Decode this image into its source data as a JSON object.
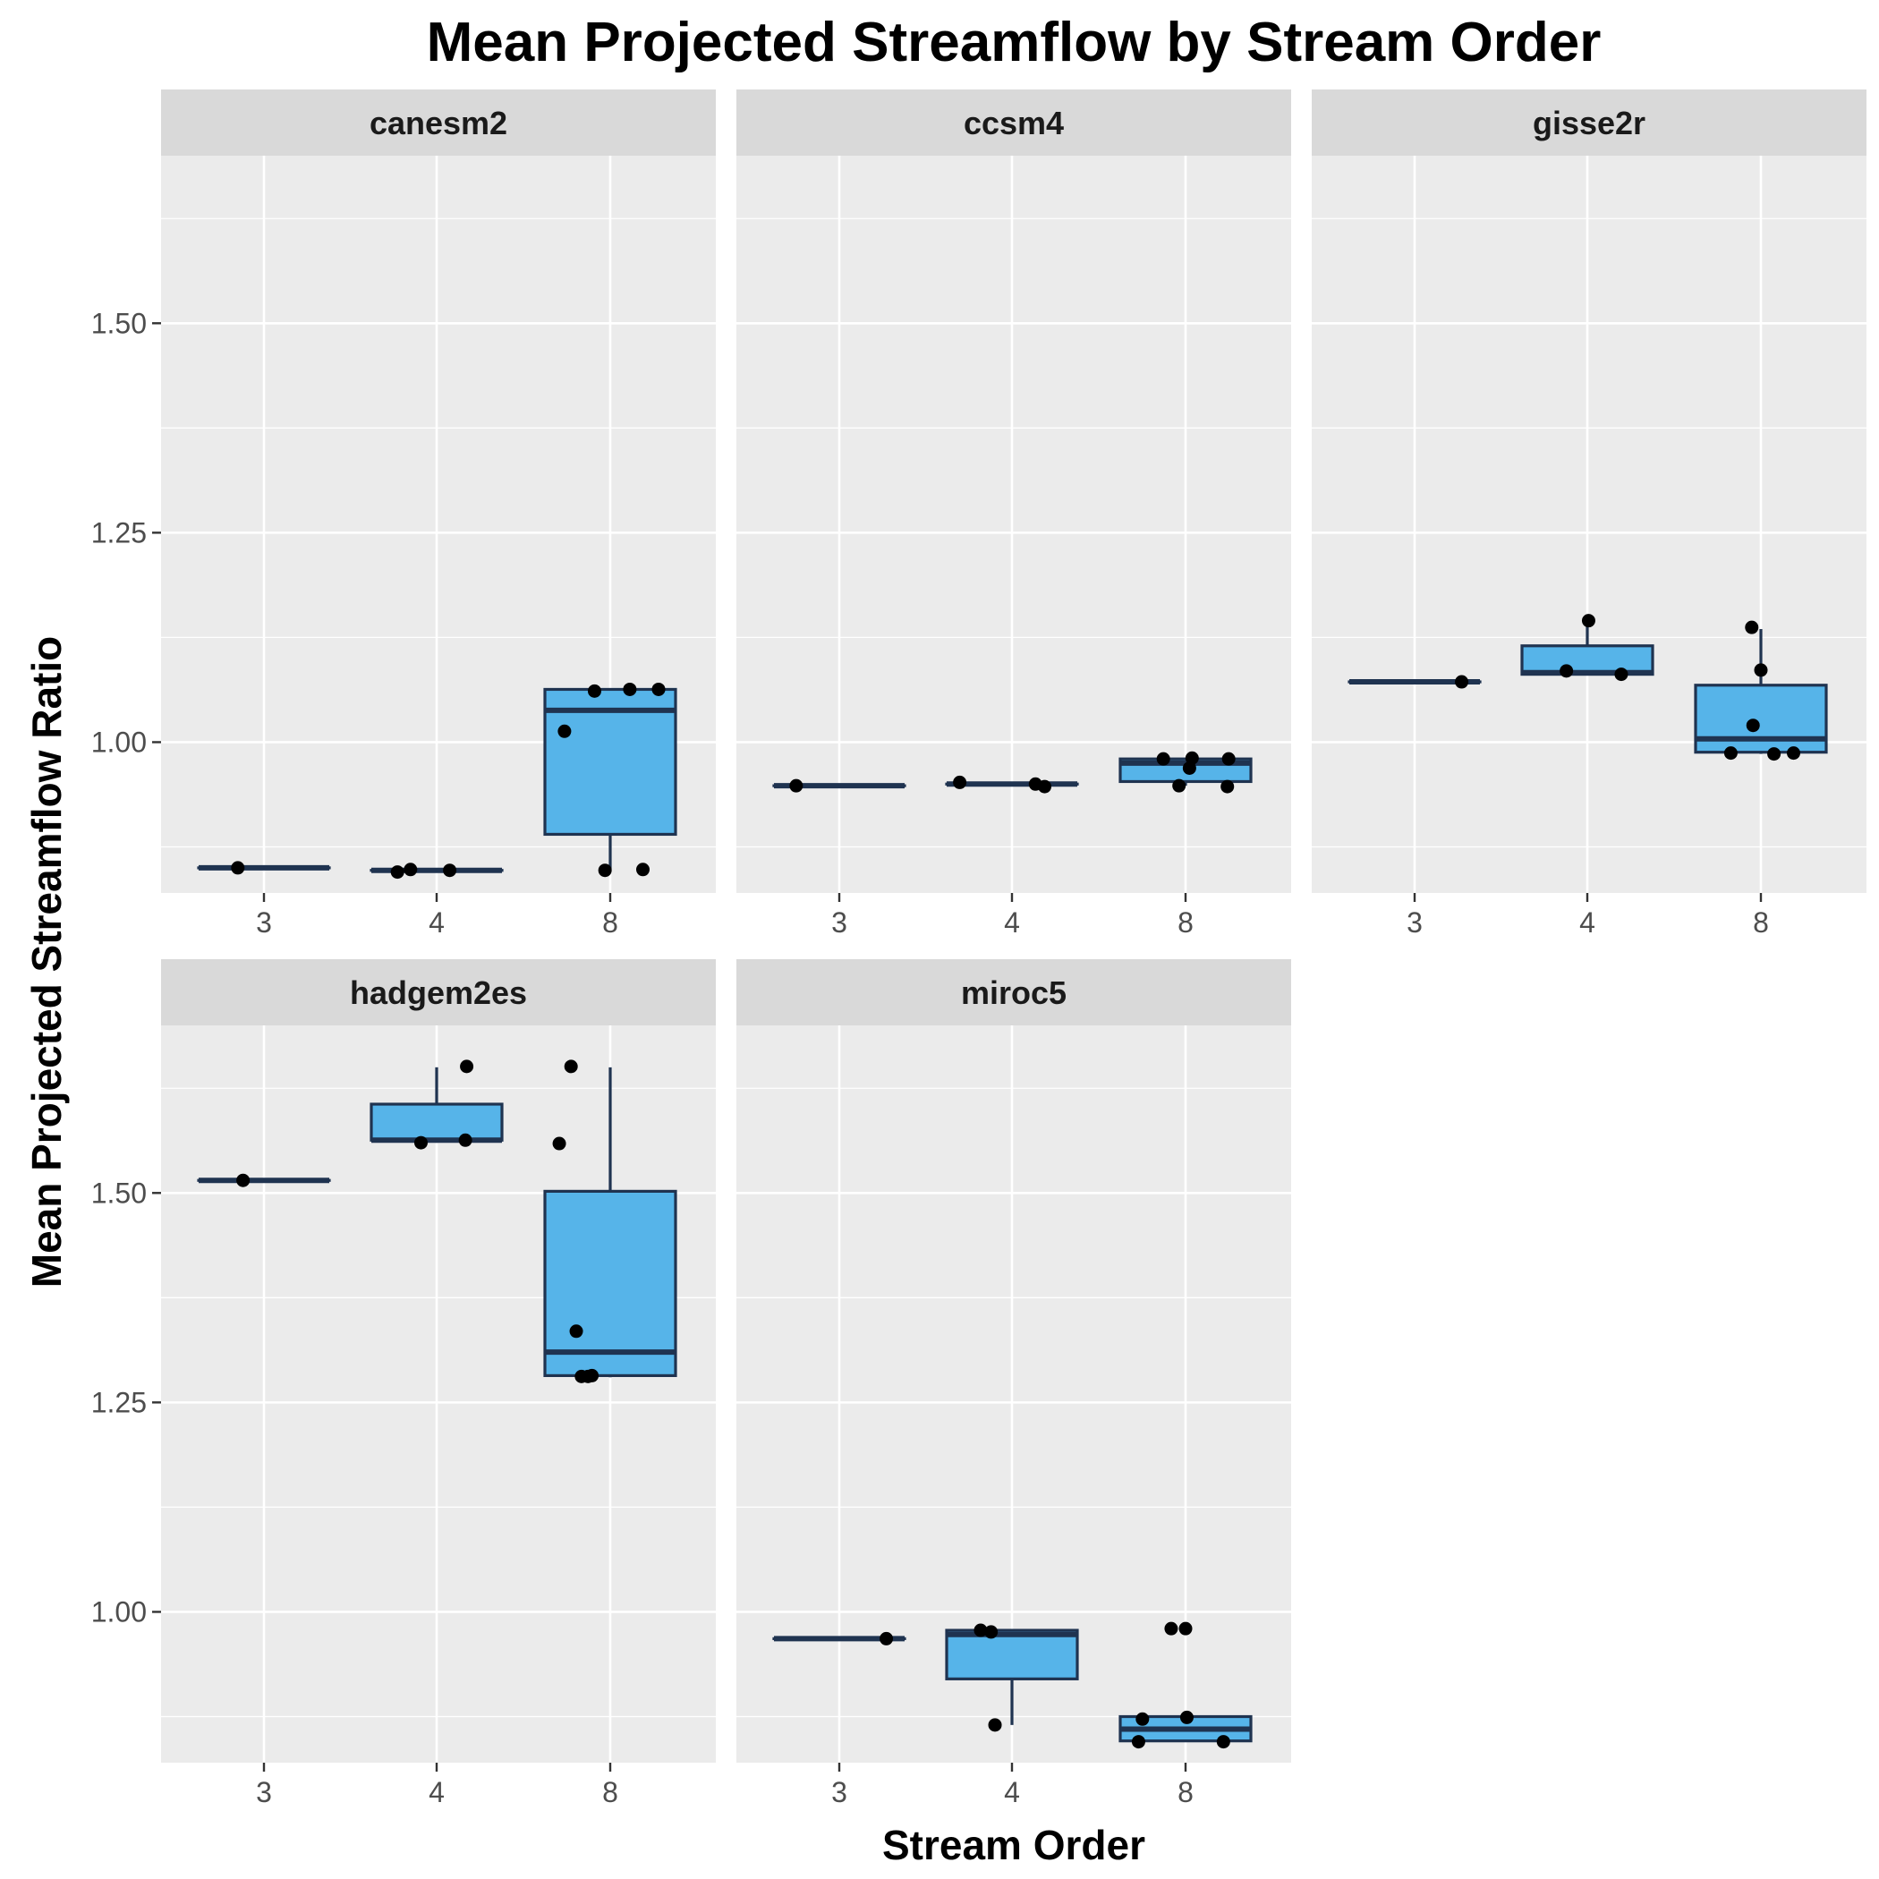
{
  "chart_data": {
    "type": "box",
    "title": "Mean Projected Streamflow by Stream Order",
    "xlabel": "Stream Order",
    "ylabel": "Mean Projected Streamflow Ratio",
    "categories": [
      "3",
      "4",
      "8"
    ],
    "y_ticks": [
      "1.00",
      "1.25",
      "1.50"
    ],
    "y_tick_values": [
      1.0,
      1.25,
      1.5
    ],
    "ylim": [
      0.82,
      1.7
    ],
    "box_fill": "#56b4e9",
    "box_stroke": "#1f3350",
    "panel_background": "#ebebeb",
    "strip_background": "#d9d9d9",
    "grid": true,
    "panels": [
      {
        "name": "canesm2",
        "boxes": [
          {
            "category": "3",
            "min": 0.85,
            "q1": 0.85,
            "median": 0.85,
            "q3": 0.85,
            "max": 0.85
          },
          {
            "category": "4",
            "min": 0.847,
            "q1": 0.847,
            "median": 0.847,
            "q3": 0.847,
            "max": 0.847
          },
          {
            "category": "8",
            "min": 0.848,
            "q1": 0.89,
            "median": 1.038,
            "q3": 1.063,
            "max": 1.063
          }
        ],
        "points": [
          {
            "category": "3",
            "jitter": -0.2,
            "y": 0.85
          },
          {
            "category": "4",
            "jitter": -0.3,
            "y": 0.845
          },
          {
            "category": "4",
            "jitter": -0.2,
            "y": 0.848
          },
          {
            "category": "4",
            "jitter": 0.1,
            "y": 0.847
          },
          {
            "category": "8",
            "jitter": -0.35,
            "y": 1.013
          },
          {
            "category": "8",
            "jitter": -0.12,
            "y": 1.061
          },
          {
            "category": "8",
            "jitter": -0.04,
            "y": 0.847
          },
          {
            "category": "8",
            "jitter": 0.15,
            "y": 1.063
          },
          {
            "category": "8",
            "jitter": 0.25,
            "y": 0.848
          },
          {
            "category": "8",
            "jitter": 0.37,
            "y": 1.063
          }
        ]
      },
      {
        "name": "ccsm4",
        "boxes": [
          {
            "category": "3",
            "min": 0.948,
            "q1": 0.948,
            "median": 0.948,
            "q3": 0.948,
            "max": 0.948
          },
          {
            "category": "4",
            "min": 0.95,
            "q1": 0.95,
            "median": 0.95,
            "q3": 0.95,
            "max": 0.95
          },
          {
            "category": "8",
            "min": 0.948,
            "q1": 0.953,
            "median": 0.975,
            "q3": 0.98,
            "max": 0.98
          }
        ],
        "points": [
          {
            "category": "3",
            "jitter": -0.33,
            "y": 0.948
          },
          {
            "category": "4",
            "jitter": -0.4,
            "y": 0.952
          },
          {
            "category": "4",
            "jitter": 0.18,
            "y": 0.95
          },
          {
            "category": "4",
            "jitter": 0.25,
            "y": 0.947
          },
          {
            "category": "8",
            "jitter": -0.17,
            "y": 0.98
          },
          {
            "category": "8",
            "jitter": -0.05,
            "y": 0.948
          },
          {
            "category": "8",
            "jitter": 0.03,
            "y": 0.969
          },
          {
            "category": "8",
            "jitter": 0.05,
            "y": 0.981
          },
          {
            "category": "8",
            "jitter": 0.32,
            "y": 0.947
          },
          {
            "category": "8",
            "jitter": 0.33,
            "y": 0.98
          }
        ]
      },
      {
        "name": "gisse2r",
        "boxes": [
          {
            "category": "3",
            "min": 1.072,
            "q1": 1.072,
            "median": 1.072,
            "q3": 1.072,
            "max": 1.072
          },
          {
            "category": "4",
            "min": 1.08,
            "q1": 1.081,
            "median": 1.083,
            "q3": 1.115,
            "max": 1.145
          },
          {
            "category": "8",
            "min": 0.986,
            "q1": 0.988,
            "median": 1.004,
            "q3": 1.068,
            "max": 1.135
          }
        ],
        "points": [
          {
            "category": "3",
            "jitter": 0.36,
            "y": 1.072
          },
          {
            "category": "4",
            "jitter": -0.16,
            "y": 1.085
          },
          {
            "category": "4",
            "jitter": 0.01,
            "y": 1.145
          },
          {
            "category": "4",
            "jitter": 0.26,
            "y": 1.081
          },
          {
            "category": "8",
            "jitter": -0.23,
            "y": 0.987
          },
          {
            "category": "8",
            "jitter": -0.07,
            "y": 1.137
          },
          {
            "category": "8",
            "jitter": -0.06,
            "y": 1.02
          },
          {
            "category": "8",
            "jitter": 0.0,
            "y": 1.086
          },
          {
            "category": "8",
            "jitter": 0.1,
            "y": 0.986
          },
          {
            "category": "8",
            "jitter": 0.25,
            "y": 0.987
          }
        ]
      },
      {
        "name": "hadgem2es",
        "boxes": [
          {
            "category": "3",
            "min": 1.515,
            "q1": 1.515,
            "median": 1.515,
            "q3": 1.515,
            "max": 1.515
          },
          {
            "category": "4",
            "min": 1.56,
            "q1": 1.563,
            "median": 1.563,
            "q3": 1.606,
            "max": 1.65
          },
          {
            "category": "8",
            "min": 1.28,
            "q1": 1.282,
            "median": 1.31,
            "q3": 1.502,
            "max": 1.65
          }
        ],
        "points": [
          {
            "category": "3",
            "jitter": -0.16,
            "y": 1.515
          },
          {
            "category": "4",
            "jitter": -0.12,
            "y": 1.56
          },
          {
            "category": "4",
            "jitter": 0.22,
            "y": 1.563
          },
          {
            "category": "4",
            "jitter": 0.23,
            "y": 1.651
          },
          {
            "category": "8",
            "jitter": -0.39,
            "y": 1.559
          },
          {
            "category": "8",
            "jitter": -0.3,
            "y": 1.651
          },
          {
            "category": "8",
            "jitter": -0.26,
            "y": 1.335
          },
          {
            "category": "8",
            "jitter": -0.22,
            "y": 1.281
          },
          {
            "category": "8",
            "jitter": -0.17,
            "y": 1.281
          },
          {
            "category": "8",
            "jitter": -0.14,
            "y": 1.282
          }
        ]
      },
      {
        "name": "miroc5",
        "boxes": [
          {
            "category": "3",
            "min": 0.968,
            "q1": 0.968,
            "median": 0.968,
            "q3": 0.968,
            "max": 0.968
          },
          {
            "category": "4",
            "min": 0.865,
            "q1": 0.92,
            "median": 0.973,
            "q3": 0.978,
            "max": 0.978
          },
          {
            "category": "8",
            "min": 0.845,
            "q1": 0.846,
            "median": 0.86,
            "q3": 0.875,
            "max": 0.875
          }
        ],
        "points": [
          {
            "category": "3",
            "jitter": 0.36,
            "y": 0.968
          },
          {
            "category": "4",
            "jitter": -0.24,
            "y": 0.978
          },
          {
            "category": "4",
            "jitter": -0.16,
            "y": 0.976
          },
          {
            "category": "4",
            "jitter": -0.13,
            "y": 0.865
          },
          {
            "category": "8",
            "jitter": -0.36,
            "y": 0.845
          },
          {
            "category": "8",
            "jitter": -0.33,
            "y": 0.872
          },
          {
            "category": "8",
            "jitter": -0.11,
            "y": 0.98
          },
          {
            "category": "8",
            "jitter": 0.0,
            "y": 0.98
          },
          {
            "category": "8",
            "jitter": 0.01,
            "y": 0.874
          },
          {
            "category": "8",
            "jitter": 0.29,
            "y": 0.845
          }
        ]
      }
    ]
  }
}
